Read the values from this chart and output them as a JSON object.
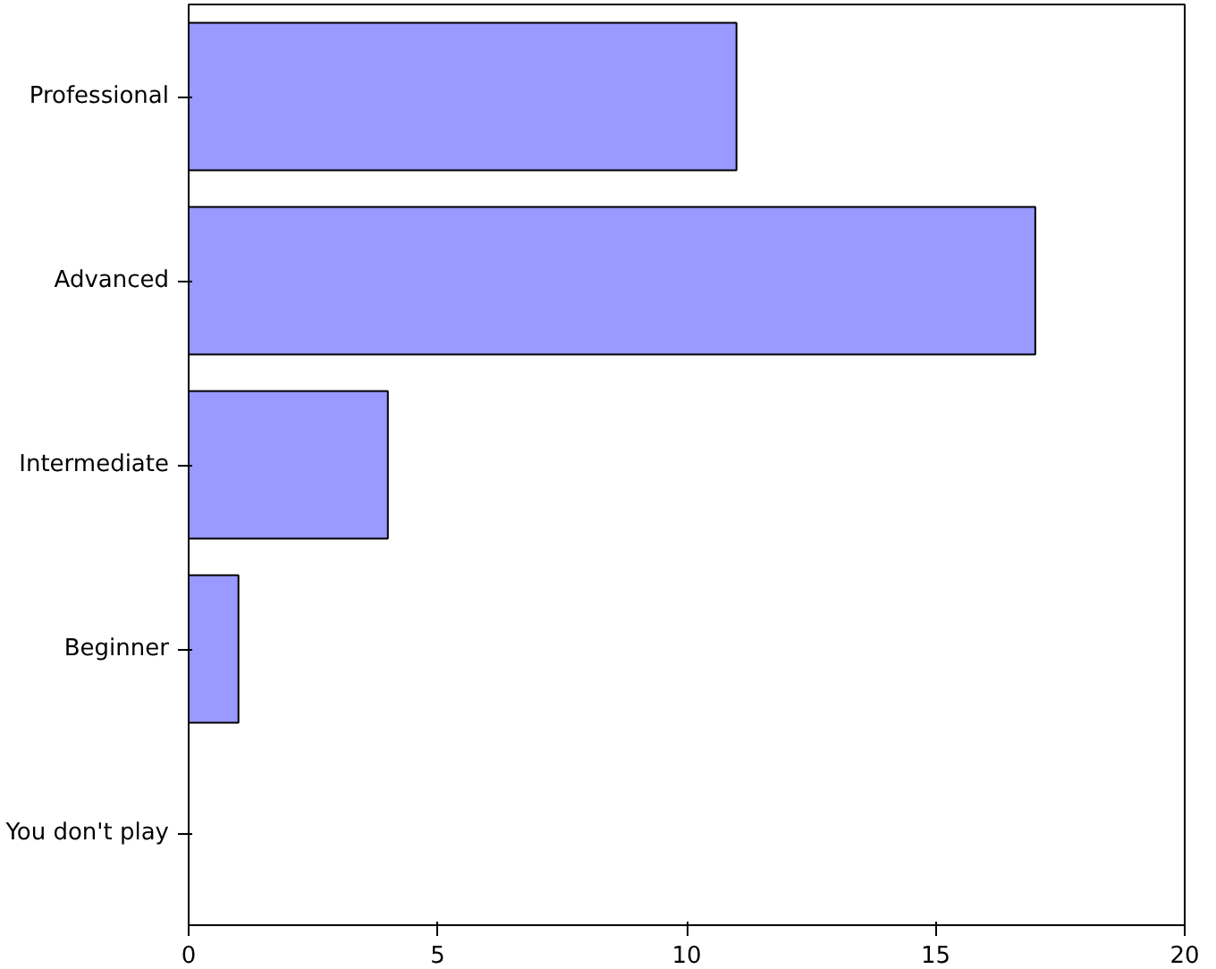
{
  "chart_data": {
    "type": "bar",
    "orientation": "horizontal",
    "categories": [
      "Professional",
      "Advanced",
      "Intermediate",
      "Beginner",
      "You don't play"
    ],
    "values": [
      11,
      17,
      4,
      1,
      0
    ],
    "color": "#9999ff",
    "xlim": [
      0,
      20
    ],
    "xticks": [
      0,
      5,
      10,
      15,
      20
    ],
    "grid": false
  }
}
